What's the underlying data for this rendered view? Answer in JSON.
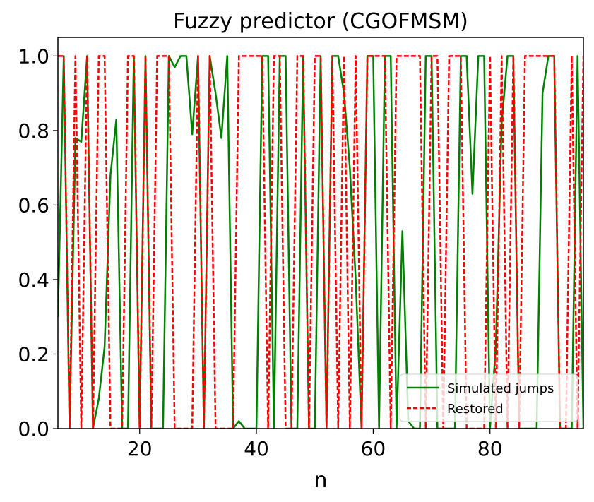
{
  "chart_data": {
    "type": "line",
    "title": "Fuzzy predictor (CGOFMSM)",
    "xlabel": "n",
    "ylabel": "",
    "xlim": [
      6,
      96
    ],
    "ylim": [
      0,
      1.05
    ],
    "xticks": [
      20,
      40,
      60,
      80
    ],
    "xtick_labels": [
      "20",
      "40",
      "60",
      "80"
    ],
    "yticks": [
      0,
      0.2,
      0.4,
      0.6,
      0.8,
      1.0
    ],
    "ytick_labels": [
      "0.0",
      "0.2",
      "0.4",
      "0.6",
      "0.8",
      "1.0"
    ],
    "grid": false,
    "legend_position": "lower right",
    "series": [
      {
        "name": "Simulated jumps",
        "color": "#008000",
        "style": "solid",
        "x": [
          6,
          7,
          8,
          9,
          10,
          11,
          12,
          13,
          14,
          15,
          16,
          17,
          18,
          19,
          20,
          21,
          22,
          23,
          24,
          25,
          26,
          27,
          28,
          29,
          30,
          31,
          32,
          33,
          34,
          35,
          36,
          37,
          38,
          39,
          40,
          41,
          42,
          43,
          44,
          45,
          46,
          47,
          48,
          49,
          50,
          51,
          52,
          53,
          54,
          55,
          56,
          57,
          58,
          59,
          60,
          61,
          62,
          63,
          64,
          65,
          66,
          67,
          68,
          69,
          70,
          71,
          72,
          73,
          74,
          75,
          76,
          77,
          78,
          79,
          80,
          81,
          82,
          83,
          84,
          85,
          86,
          87,
          88,
          89,
          90,
          91,
          92,
          93,
          94,
          95,
          96
        ],
        "y": [
          0.3,
          1.0,
          0.0,
          0.78,
          0.77,
          1.0,
          0.0,
          0.08,
          0.22,
          0.68,
          0.83,
          0.0,
          0.0,
          1.0,
          0.0,
          1.0,
          0.0,
          0.0,
          0.0,
          1.0,
          0.97,
          1.0,
          1.0,
          0.79,
          1.0,
          0.0,
          1.0,
          0.9,
          0.78,
          1.0,
          0.0,
          0.02,
          0.0,
          0.0,
          0.0,
          1.0,
          1.0,
          0.0,
          1.0,
          1.0,
          0.0,
          0.0,
          1.0,
          0.0,
          0.0,
          1.0,
          0.0,
          1.0,
          1.0,
          0.9,
          0.7,
          0.4,
          0.0,
          1.0,
          1.0,
          0.0,
          1.0,
          1.0,
          0.0,
          0.53,
          0.02,
          0.0,
          0.0,
          1.0,
          1.0,
          0.0,
          0.0,
          0.0,
          0.0,
          1.0,
          1.0,
          0.63,
          1.0,
          1.0,
          0.0,
          0.22,
          0.82,
          1.0,
          1.0,
          0.0,
          0.0,
          0.0,
          0.0,
          0.9,
          1.0,
          1.0,
          0.0,
          0.0,
          0.0,
          1.0,
          0.0
        ]
      },
      {
        "name": "Restored",
        "color": "#ff0000",
        "style": "dashed",
        "x": [
          6,
          7,
          8,
          9,
          10,
          11,
          12,
          13,
          14,
          15,
          16,
          17,
          18,
          19,
          20,
          21,
          22,
          23,
          24,
          25,
          26,
          27,
          28,
          29,
          30,
          31,
          32,
          33,
          34,
          35,
          36,
          37,
          38,
          39,
          40,
          41,
          42,
          43,
          44,
          45,
          46,
          47,
          48,
          49,
          50,
          51,
          52,
          53,
          54,
          55,
          56,
          57,
          58,
          59,
          60,
          61,
          62,
          63,
          64,
          65,
          66,
          67,
          68,
          69,
          70,
          71,
          72,
          73,
          74,
          75,
          76,
          77,
          78,
          79,
          80,
          81,
          82,
          83,
          84,
          85,
          86,
          87,
          88,
          89,
          90,
          91,
          92,
          93,
          94,
          95,
          96
        ],
        "y": [
          1.0,
          1.0,
          0.0,
          1.0,
          0.0,
          1.0,
          0.0,
          1.0,
          1.0,
          0.0,
          0.0,
          0.0,
          1.0,
          1.0,
          0.0,
          1.0,
          0.0,
          1.0,
          1.0,
          1.0,
          0.0,
          0.0,
          0.0,
          0.0,
          1.0,
          0.0,
          1.0,
          0.0,
          0.0,
          0.0,
          0.0,
          1.0,
          1.0,
          1.0,
          1.0,
          1.0,
          0.0,
          1.0,
          1.0,
          0.0,
          0.0,
          1.0,
          1.0,
          0.0,
          1.0,
          1.0,
          0.0,
          1.0,
          0.0,
          1.0,
          0.0,
          1.0,
          0.0,
          1.0,
          1.0,
          1.0,
          1.0,
          0.0,
          1.0,
          1.0,
          1.0,
          1.0,
          1.0,
          0.0,
          1.0,
          1.0,
          0.0,
          1.0,
          1.0,
          1.0,
          0.0,
          0.0,
          0.0,
          0.0,
          1.0,
          0.0,
          1.0,
          0.0,
          1.0,
          0.0,
          1.0,
          1.0,
          1.0,
          1.0,
          1.0,
          1.0,
          0.0,
          0.0,
          1.0,
          0.0,
          1.0
        ]
      }
    ]
  }
}
